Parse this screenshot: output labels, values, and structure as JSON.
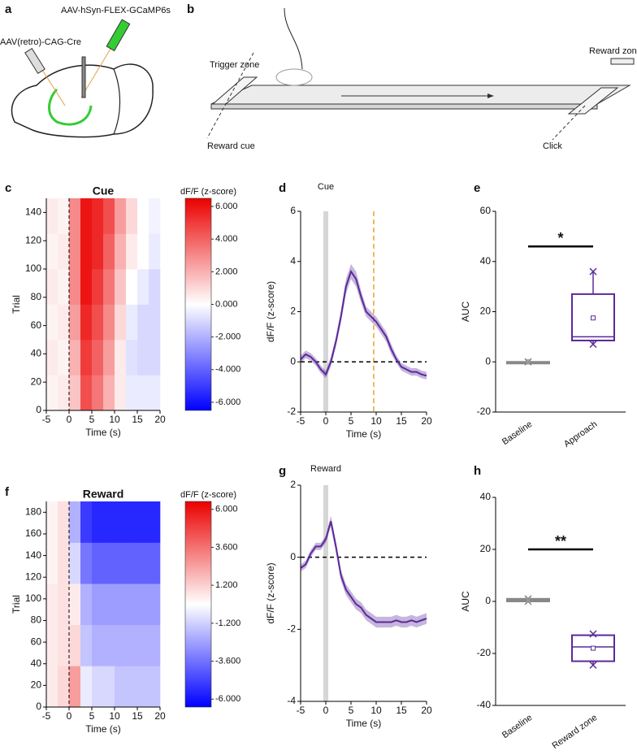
{
  "figure": {
    "panel_labels": [
      "a",
      "b",
      "c",
      "d",
      "e",
      "f",
      "g",
      "h"
    ],
    "a": {
      "injection_1": "AAV(retro)-CAG-Cre",
      "injection_2": "AAV-hSyn-FLEX-GCaMP6s"
    },
    "b": {
      "trigger_zone": "Trigger zone",
      "reward_cue": "Reward cue",
      "reward_zone": "Reward zone",
      "click": "Click"
    }
  },
  "chart_data": [
    {
      "type": "heatmap",
      "title": "Cue",
      "colorbar_label": "dF/F (z-score)",
      "xlabel": "Time (s)",
      "ylabel": "Trial",
      "xlim": [
        -5,
        20
      ],
      "xticks": [
        -5,
        0,
        5,
        10,
        15,
        20
      ],
      "ylim": [
        0,
        150
      ],
      "yticks": [
        0,
        20,
        40,
        60,
        80,
        100,
        120,
        140
      ],
      "clim": [
        -6.5,
        6.5
      ],
      "cticks": [
        {
          "value": 6,
          "label": "6.000"
        },
        {
          "value": 4,
          "label": "4.000"
        },
        {
          "value": 2,
          "label": "2.000"
        },
        {
          "value": 0,
          "label": "0.000"
        },
        {
          "value": -2,
          "label": "-2.000"
        },
        {
          "value": -4,
          "label": "-4.000"
        },
        {
          "value": -6,
          "label": "-6.000"
        }
      ],
      "xbins": [
        -5,
        -2.5,
        0,
        2.5,
        5,
        7.5,
        10,
        12.5,
        15,
        17.5,
        20
      ],
      "ybins": [
        0,
        25,
        50,
        75,
        100,
        125,
        150
      ],
      "z": [
        [
          0.3,
          0.5,
          1.5,
          4.5,
          3.5,
          2,
          0.5,
          -0.5,
          -0.5,
          -0.5
        ],
        [
          0.5,
          0.3,
          2,
          5,
          4,
          2.5,
          0.5,
          -0.8,
          -1,
          -1
        ],
        [
          0.3,
          0.5,
          2.5,
          5.5,
          4.5,
          3,
          1,
          -0.5,
          -1,
          -1
        ],
        [
          0.5,
          0.3,
          3,
          6,
          5,
          3.5,
          1.5,
          0,
          -0.5,
          -1
        ],
        [
          0.3,
          0.5,
          3,
          6,
          5.5,
          4,
          2,
          0.5,
          0,
          -0.5
        ],
        [
          0.5,
          0.3,
          3,
          6,
          5.5,
          4.5,
          2.5,
          1,
          0,
          -0.3
        ]
      ],
      "event_x": 0
    },
    {
      "type": "line",
      "label": "Cue",
      "xlabel": "Time (s)",
      "ylabel": "dF/F (z-score)",
      "xlim": [
        -5,
        20
      ],
      "xticks": [
        -5,
        0,
        5,
        10,
        15,
        20
      ],
      "ylim": [
        -2,
        6
      ],
      "yticks": [
        -2,
        0,
        2,
        4,
        6
      ],
      "x": [
        -5,
        -4,
        -3,
        -2,
        -1,
        0,
        1,
        2,
        3,
        4,
        5,
        6,
        7,
        8,
        9,
        10,
        11,
        12,
        13,
        14,
        15,
        16,
        17,
        18,
        19,
        20
      ],
      "series": [
        {
          "color": "#5b2a9a",
          "values": [
            0.1,
            0.3,
            0.2,
            0,
            -0.3,
            -0.5,
            0,
            0.8,
            1.8,
            3.0,
            3.6,
            3.3,
            2.6,
            2.0,
            1.8,
            1.6,
            1.3,
            1.0,
            0.5,
            0.1,
            -0.2,
            -0.3,
            -0.4,
            -0.4,
            -0.5,
            -0.55
          ],
          "error": [
            0.15,
            0.15,
            0.15,
            0.15,
            0.15,
            0.15,
            0.2,
            0.2,
            0.25,
            0.3,
            0.3,
            0.3,
            0.25,
            0.2,
            0.2,
            0.2,
            0.2,
            0.2,
            0.2,
            0.15,
            0.15,
            0.15,
            0.15,
            0.15,
            0.15,
            0.15
          ]
        }
      ],
      "event_x": 0,
      "dashed_x": 9.5,
      "hline": 0
    },
    {
      "type": "box",
      "ylabel": "AUC",
      "ylim": [
        -20,
        60
      ],
      "yticks": [
        -20,
        0,
        20,
        40,
        60
      ],
      "categories": [
        "Baseline",
        "Approach"
      ],
      "colors": [
        "#888888",
        "#5b2a9a"
      ],
      "boxes": [
        {
          "min": 0,
          "q1": 0,
          "median": 0,
          "q3": 0,
          "max": 0,
          "mean": 0
        },
        {
          "min": 7,
          "q1": 8.5,
          "median": 10,
          "q3": 27,
          "max": 36,
          "mean": 17.5
        }
      ],
      "significance": {
        "text": "*",
        "y": 46
      }
    },
    {
      "type": "heatmap",
      "title": "Reward",
      "colorbar_label": "dF/F (z-score)",
      "xlabel": "Time (s)",
      "ylabel": "Trial",
      "xlim": [
        -5,
        20
      ],
      "xticks": [
        -5,
        0,
        5,
        10,
        15,
        20
      ],
      "ylim": [
        0,
        190
      ],
      "yticks": [
        0,
        20,
        40,
        60,
        80,
        100,
        120,
        140,
        160,
        180
      ],
      "clim": [
        -6.5,
        6.5
      ],
      "cticks": [
        {
          "value": 6,
          "label": "6.000"
        },
        {
          "value": 3.6,
          "label": "3.600"
        },
        {
          "value": 1.2,
          "label": "1.200"
        },
        {
          "value": -1.2,
          "label": "-1.200"
        },
        {
          "value": -3.6,
          "label": "-3.600"
        },
        {
          "value": -6,
          "label": "-6.000"
        }
      ],
      "xbins": [
        -5,
        -2.5,
        0,
        2.5,
        5,
        7.5,
        10,
        12.5,
        15,
        17.5,
        20
      ],
      "ybins": [
        0,
        38,
        76,
        114,
        152,
        190
      ],
      "z": [
        [
          0.5,
          1,
          2.5,
          -0.5,
          -1,
          -1,
          -1.5,
          -1.5,
          -1.5,
          -1.5
        ],
        [
          0.5,
          0.8,
          1,
          -1.5,
          -2,
          -2,
          -2,
          -2,
          -2,
          -2
        ],
        [
          0.5,
          0.8,
          0.5,
          -2,
          -2.5,
          -2.5,
          -2.5,
          -2.5,
          -2.5,
          -2.5
        ],
        [
          0.3,
          0.8,
          -1,
          -3.5,
          -4,
          -4,
          -4,
          -4,
          -4,
          -4
        ],
        [
          0.3,
          0.8,
          -2,
          -5,
          -5.5,
          -5.5,
          -5.5,
          -5.5,
          -5.5,
          -5.5
        ]
      ],
      "event_x": 0
    },
    {
      "type": "line",
      "label": "Reward",
      "xlabel": "Time (s)",
      "ylabel": "dF/F (z-score)",
      "xlim": [
        -5,
        20
      ],
      "xticks": [
        -5,
        0,
        5,
        10,
        15,
        20
      ],
      "ylim": [
        -4,
        2
      ],
      "yticks": [
        -4,
        -2,
        0,
        2
      ],
      "x": [
        -5,
        -4,
        -3,
        -2,
        -1,
        0,
        1,
        2,
        3,
        4,
        5,
        6,
        7,
        8,
        9,
        10,
        11,
        12,
        13,
        14,
        15,
        16,
        17,
        18,
        19,
        20
      ],
      "series": [
        {
          "color": "#5b2a9a",
          "values": [
            -0.3,
            -0.2,
            0.1,
            0.3,
            0.3,
            0.5,
            1.0,
            0.3,
            -0.5,
            -0.9,
            -1.1,
            -1.3,
            -1.4,
            -1.6,
            -1.7,
            -1.8,
            -1.8,
            -1.8,
            -1.8,
            -1.75,
            -1.8,
            -1.8,
            -1.75,
            -1.8,
            -1.75,
            -1.7
          ],
          "error": [
            0.1,
            0.1,
            0.1,
            0.1,
            0.1,
            0.1,
            0.15,
            0.15,
            0.15,
            0.15,
            0.15,
            0.15,
            0.15,
            0.15,
            0.15,
            0.15,
            0.15,
            0.15,
            0.15,
            0.15,
            0.15,
            0.15,
            0.15,
            0.15,
            0.15,
            0.15
          ]
        }
      ],
      "event_x": 0,
      "hline": 0
    },
    {
      "type": "box",
      "ylabel": "AUC",
      "ylim": [
        -40,
        40
      ],
      "yticks": [
        -40,
        -20,
        0,
        20,
        40
      ],
      "categories": [
        "Baseline",
        "Reward zone"
      ],
      "colors": [
        "#888888",
        "#5b2a9a"
      ],
      "boxes": [
        {
          "min": 0,
          "q1": 0,
          "median": 0.5,
          "q3": 1,
          "max": 1,
          "mean": 0.5
        },
        {
          "min": -24.5,
          "q1": -23,
          "median": -17.5,
          "q3": -13,
          "max": -12.5,
          "mean": -18
        }
      ],
      "significance": {
        "text": "**",
        "y": 20
      }
    }
  ]
}
